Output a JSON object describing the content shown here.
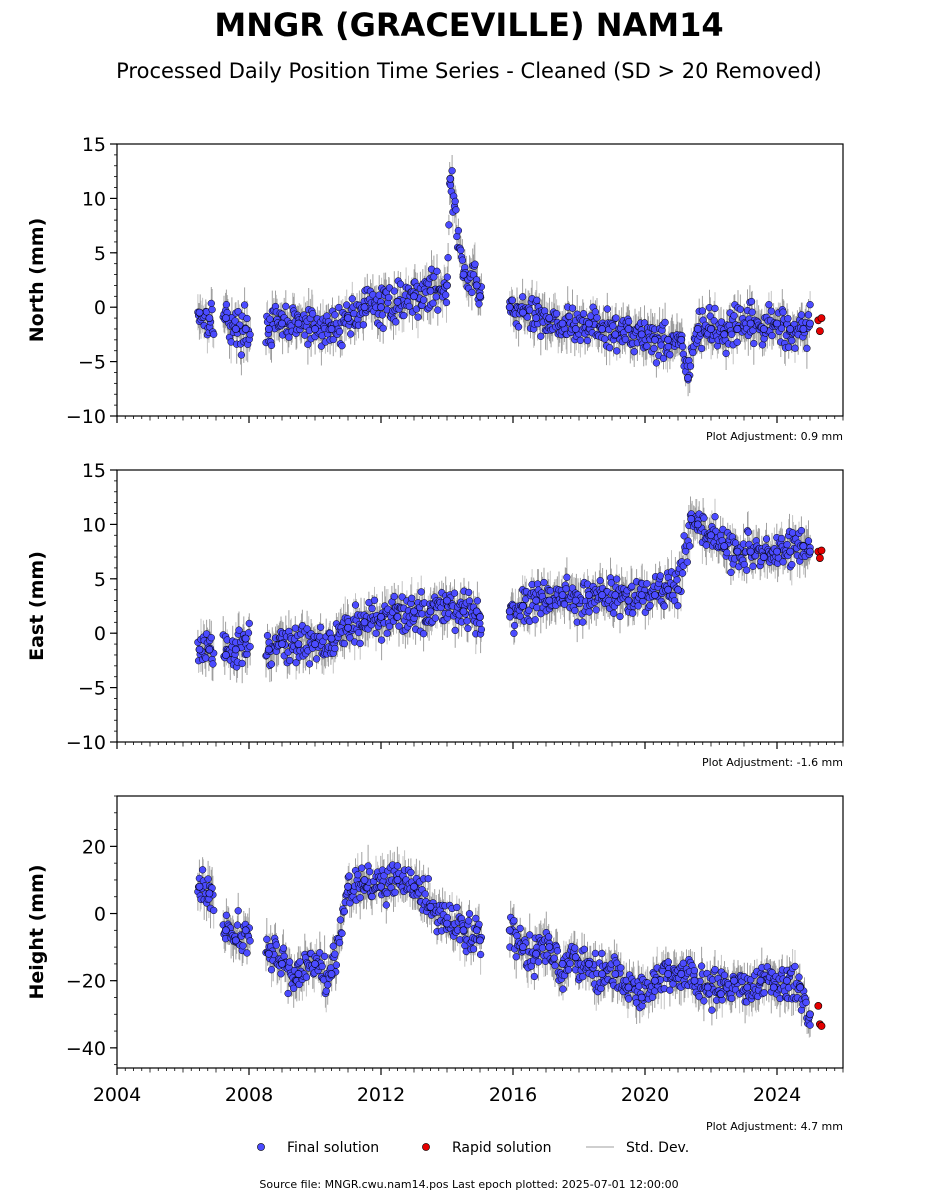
{
  "title": "MNGR (GRACEVILLE) NAM14",
  "subtitle": "Processed Daily Position Time Series - Cleaned (SD > 20 Removed)",
  "colors": {
    "final": "#4b4bff",
    "rapid": "#e50000",
    "stddev": "#b4b4b4",
    "outline": "#000000"
  },
  "legend": {
    "final_label": "Final solution",
    "rapid_label": "Rapid solution",
    "std_label": "Std. Dev."
  },
  "footer": "Source file: MNGR.cwu.nam14.pos  Last epoch plotted: 2025-07-01 12:00:00",
  "chart_data": [
    {
      "type": "scatter",
      "ylabel": "North (mm)",
      "ylim": [
        -10,
        15
      ],
      "yticks": [
        -10,
        -5,
        0,
        5,
        10,
        15
      ],
      "xlim": [
        2004,
        2026
      ],
      "adjustment": "Plot Adjustment: 0.9 mm",
      "show_xtick_labels": false,
      "series": [
        {
          "name": "Final solution",
          "x": [
            2006.5,
            2006.8,
            2007.3,
            2007.6,
            2007.9,
            2008.6,
            2009.0,
            2009.5,
            2010.0,
            2010.5,
            2011.0,
            2011.5,
            2012.0,
            2012.5,
            2013.0,
            2013.5,
            2014.0,
            2014.1,
            2014.5,
            2014.9,
            2015.0,
            2015.9,
            2016.3,
            2016.7,
            2017.1,
            2017.5,
            2017.9,
            2018.3,
            2018.7,
            2019.1,
            2019.5,
            2019.9,
            2020.3,
            2020.7,
            2021.1,
            2021.3,
            2021.6,
            2022.0,
            2022.4,
            2022.8,
            2023.2,
            2023.6,
            2024.0,
            2024.4,
            2024.8,
            2025.0
          ],
          "y": [
            -0.5,
            -1,
            -1,
            -2,
            -2,
            -2,
            -1.5,
            -1.5,
            -2,
            -2,
            -1,
            0,
            0,
            0.5,
            1,
            1.5,
            2,
            11.8,
            3,
            2,
            1,
            0,
            -0.5,
            -1,
            -1,
            -1.5,
            -2,
            -1.5,
            -2,
            -2.5,
            -2,
            -2.5,
            -3,
            -3,
            -3,
            -6.5,
            -2,
            -2,
            -2.5,
            -2,
            -1.5,
            -2,
            -1.5,
            -2,
            -2,
            -1.5
          ]
        },
        {
          "name": "Rapid solution",
          "x": [
            2025.25,
            2025.3,
            2025.35
          ],
          "y": [
            -1.2,
            -2.2,
            -1.0
          ]
        }
      ]
    },
    {
      "type": "scatter",
      "ylabel": "East (mm)",
      "ylim": [
        -10,
        15
      ],
      "yticks": [
        -10,
        -5,
        0,
        5,
        10,
        15
      ],
      "xlim": [
        2004,
        2026
      ],
      "adjustment": "Plot Adjustment: -1.6 mm",
      "show_xtick_labels": false,
      "series": [
        {
          "name": "Final solution",
          "x": [
            2006.5,
            2006.8,
            2007.3,
            2007.6,
            2007.9,
            2008.6,
            2009.0,
            2009.5,
            2010.0,
            2010.5,
            2011.0,
            2011.5,
            2012.0,
            2012.5,
            2013.0,
            2013.5,
            2014.0,
            2014.5,
            2014.9,
            2015.0,
            2015.9,
            2016.3,
            2016.7,
            2017.1,
            2017.5,
            2017.9,
            2018.3,
            2018.7,
            2019.1,
            2019.5,
            2019.9,
            2020.3,
            2020.7,
            2021.0,
            2021.4,
            2021.6,
            2022.0,
            2022.4,
            2022.8,
            2023.2,
            2023.6,
            2024.0,
            2024.4,
            2024.8,
            2025.0
          ],
          "y": [
            -1.5,
            -1.5,
            -2,
            -1.5,
            -0.5,
            -1.5,
            -1,
            -1,
            -1,
            -0.5,
            0.5,
            1,
            1.5,
            1.5,
            2,
            2,
            3,
            2,
            2,
            1.5,
            2,
            2.5,
            3,
            3,
            3.5,
            3,
            3.5,
            3.5,
            3.5,
            3,
            3.5,
            3.5,
            4,
            4,
            10.5,
            10,
            9,
            8,
            7.5,
            7.5,
            7,
            7.5,
            7.5,
            8,
            7.5
          ]
        },
        {
          "name": "Rapid solution",
          "x": [
            2025.25,
            2025.3,
            2025.35
          ],
          "y": [
            7.5,
            6.9,
            7.6
          ]
        }
      ]
    },
    {
      "type": "scatter",
      "ylabel": "Height (mm)",
      "ylim": [
        -46,
        35
      ],
      "yticks": [
        -40,
        -20,
        0,
        20
      ],
      "xlim": [
        2004,
        2026
      ],
      "xticks": [
        2004,
        2008,
        2012,
        2016,
        2020,
        2024
      ],
      "adjustment": "Plot Adjustment: 4.7 mm",
      "show_xtick_labels": true,
      "series": [
        {
          "name": "Final solution",
          "x": [
            2006.5,
            2006.8,
            2007.3,
            2007.6,
            2007.9,
            2008.6,
            2009.0,
            2009.5,
            2010.0,
            2010.5,
            2011.0,
            2011.5,
            2012.0,
            2012.5,
            2013.0,
            2013.5,
            2014.0,
            2014.5,
            2014.9,
            2015.0,
            2015.9,
            2016.3,
            2016.7,
            2017.1,
            2017.5,
            2017.9,
            2018.3,
            2018.7,
            2019.1,
            2019.5,
            2019.9,
            2020.3,
            2020.7,
            2021.1,
            2021.5,
            2021.9,
            2022.3,
            2022.7,
            2023.1,
            2023.5,
            2023.9,
            2024.3,
            2024.7,
            2025.0
          ],
          "y": [
            8,
            6,
            -5,
            -8,
            -5,
            -12,
            -15,
            -18,
            -15,
            -18,
            8,
            10,
            8,
            10,
            8,
            2,
            -3,
            -5,
            -5,
            -8,
            -5,
            -10,
            -12,
            -10,
            -15,
            -13,
            -15,
            -18,
            -18,
            -22,
            -25,
            -20,
            -18,
            -18,
            -20,
            -22,
            -24,
            -20,
            -22,
            -20,
            -22,
            -20,
            -22,
            -30
          ]
        },
        {
          "name": "Rapid solution",
          "x": [
            2025.25,
            2025.3,
            2025.35
          ],
          "y": [
            -27.5,
            -33,
            -33.5
          ]
        }
      ]
    }
  ]
}
